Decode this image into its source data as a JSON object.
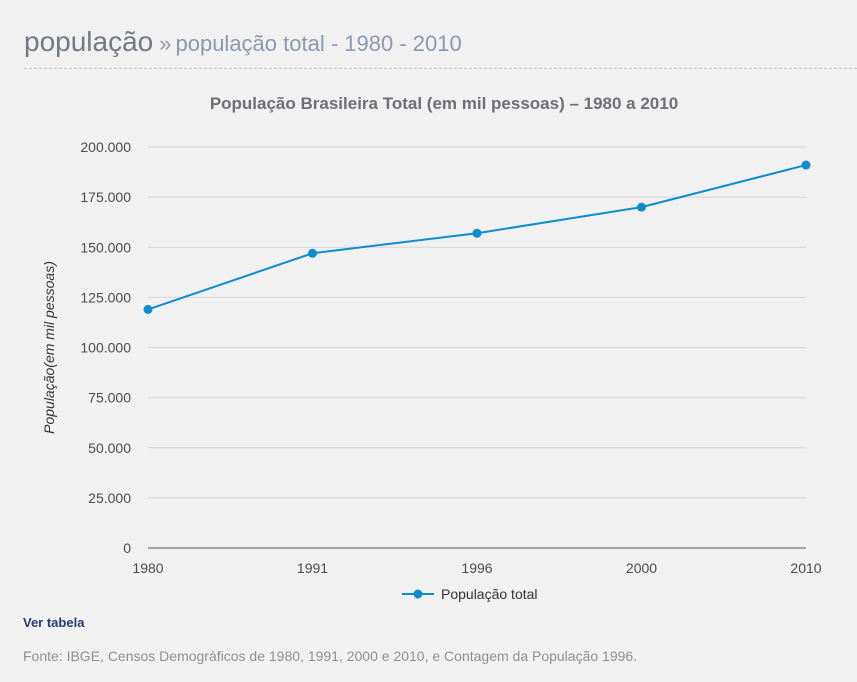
{
  "header": {
    "title": "população",
    "separator": "»",
    "subtitle": "população total - 1980 - 2010"
  },
  "chart_data": {
    "type": "line",
    "title": "População Brasileira Total (em mil pessoas) – 1980 a 2010",
    "xlabel": "",
    "ylabel": "População(em mil pessoas)",
    "categories": [
      "1980",
      "1991",
      "1996",
      "2000",
      "2010"
    ],
    "series": [
      {
        "name": "População total",
        "values": [
          119000,
          147000,
          157000,
          170000,
          191000
        ]
      }
    ],
    "ylim": [
      0,
      200000
    ],
    "yticks": [
      "0",
      "25.000",
      "50.000",
      "75.000",
      "100.000",
      "125.000",
      "150.000",
      "175.000",
      "200.000"
    ],
    "ytick_values": [
      0,
      25000,
      50000,
      75000,
      100000,
      125000,
      150000,
      175000,
      200000
    ],
    "grid": true,
    "legend": "bottom-center",
    "color": "#0f8bd0"
  },
  "links": {
    "ver_tabela": "Ver tabela"
  },
  "source": {
    "text": "Fonte: IBGE, Censos Demográficos de 1980, 1991, 2000 e 2010, e Contagem da População 1996."
  }
}
